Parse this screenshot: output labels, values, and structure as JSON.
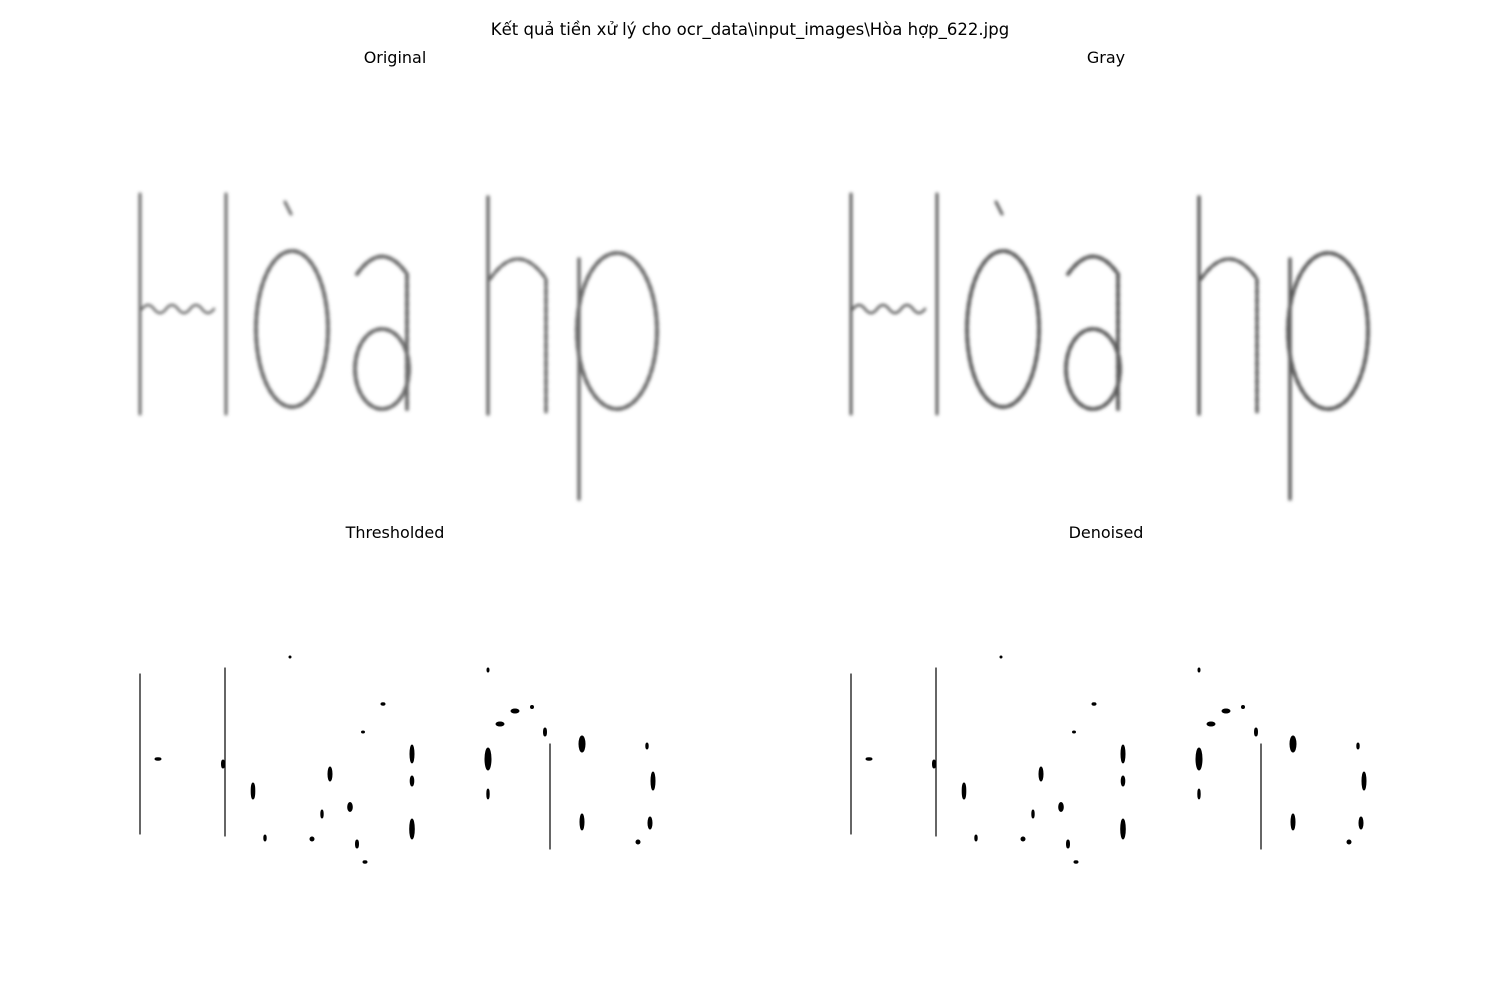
{
  "figure": {
    "title": "Kết quả tiền xử lý cho ocr_data\\input_images\\Hòa hợp_622.jpg"
  },
  "panels": [
    {
      "key": "original",
      "title": "Original"
    },
    {
      "key": "gray",
      "title": "Gray"
    },
    {
      "key": "thresholded",
      "title": "Thresholded"
    },
    {
      "key": "denoised",
      "title": "Denoised"
    }
  ],
  "colors": {
    "background": "#ffffff",
    "stroke_soft": "#6a6a6a",
    "stroke_dark": "#000000"
  }
}
